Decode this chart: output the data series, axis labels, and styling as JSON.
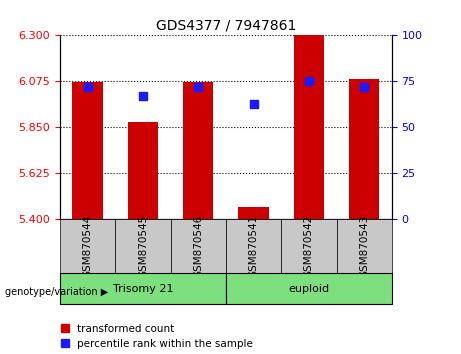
{
  "title": "GDS4377 / 7947861",
  "samples": [
    "GSM870544",
    "GSM870545",
    "GSM870546",
    "GSM870541",
    "GSM870542",
    "GSM870543"
  ],
  "transformed_count": [
    6.07,
    5.875,
    6.07,
    5.46,
    6.3,
    6.085
  ],
  "percentile_rank": [
    72,
    67,
    72,
    63,
    75,
    72
  ],
  "bar_base": 5.4,
  "ylim_left": [
    5.4,
    6.3
  ],
  "yticks_left": [
    5.4,
    5.625,
    5.85,
    6.075,
    6.3
  ],
  "ylim_right": [
    0,
    100
  ],
  "yticks_right": [
    0,
    25,
    50,
    75,
    100
  ],
  "bar_color": "#cc0000",
  "dot_color": "#1a1aff",
  "group1_label": "Trisomy 21",
  "group2_label": "euploid",
  "group_color": "#7ddf7d",
  "group1_indices": [
    0,
    1,
    2
  ],
  "group2_indices": [
    3,
    4,
    5
  ],
  "xlabel_genotype": "genotype/variation",
  "legend_bar_label": "transformed count",
  "legend_dot_label": "percentile rank within the sample",
  "tick_bg_color": "#c8c8c8",
  "bar_width": 0.55,
  "dot_size": 40,
  "fig_width": 4.61,
  "fig_height": 3.54,
  "dpi": 100
}
